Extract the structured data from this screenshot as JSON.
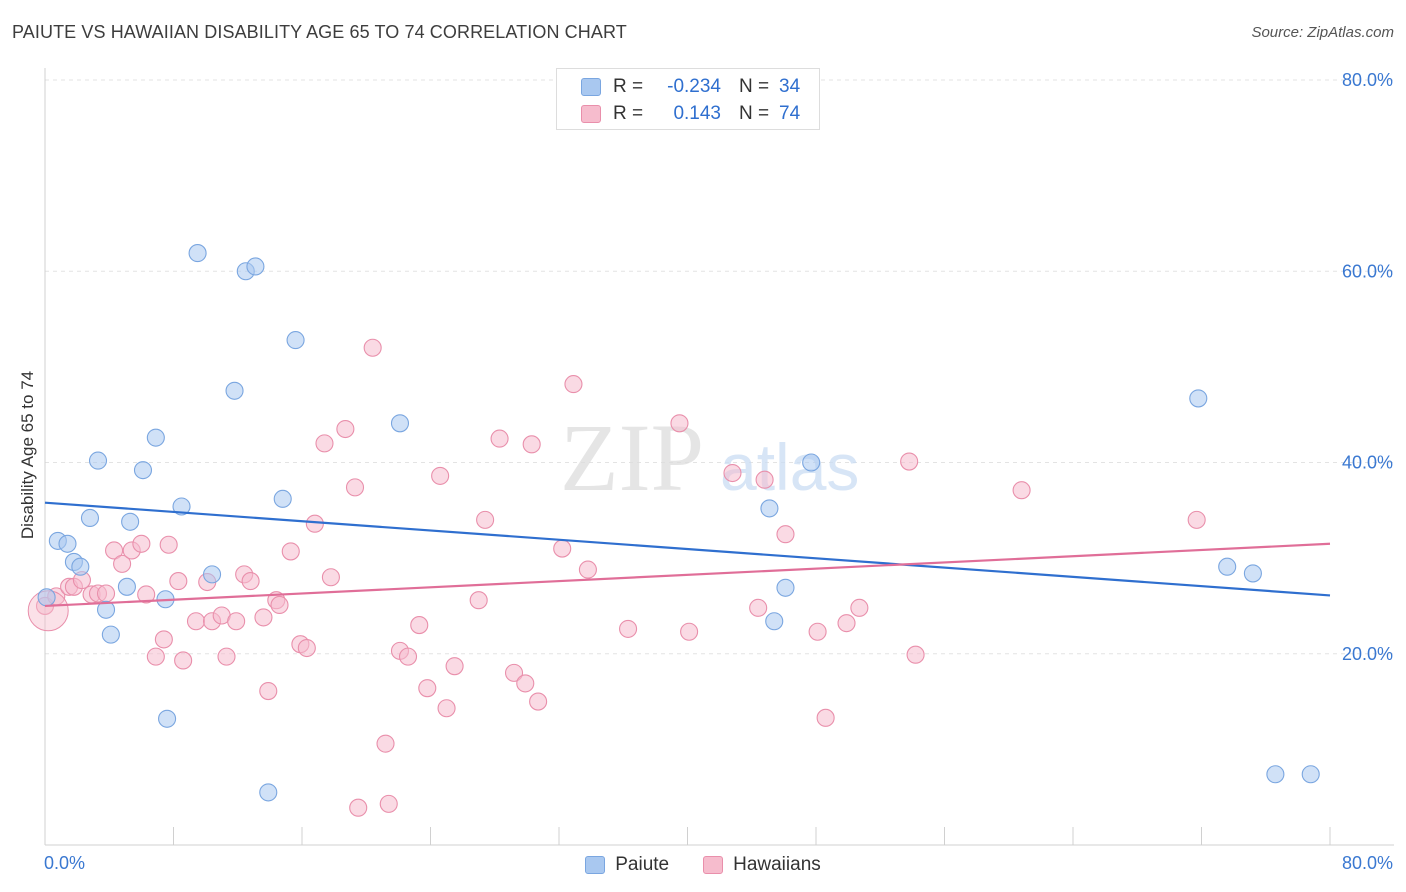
{
  "header": {
    "title": "PAIUTE VS HAWAIIAN DISABILITY AGE 65 TO 74 CORRELATION CHART",
    "source": "Source: ZipAtlas.com"
  },
  "legend_top": {
    "rows": [
      {
        "r_label": "R =",
        "r_value": "-0.234",
        "n_label": "N =",
        "n_value": "34"
      },
      {
        "r_label": "R =",
        "r_value": "0.143",
        "n_label": "N =",
        "n_value": "74"
      }
    ]
  },
  "legend_bottom": {
    "items": [
      {
        "label": "Paiute"
      },
      {
        "label": "Hawaiians"
      }
    ]
  },
  "colors": {
    "paiute_fill": "#a9c8f0",
    "paiute_stroke": "#7aa6e0",
    "paiute_line": "#2f6fcf",
    "hawaiian_fill": "#f6bccd",
    "hawaiian_stroke": "#e98fab",
    "hawaiian_line": "#e06e98",
    "axis_text": "#3a78d1",
    "grid": "#e3e3e3"
  },
  "chart_data": {
    "type": "scatter",
    "title": "PAIUTE VS HAWAIIAN DISABILITY AGE 65 TO 74 CORRELATION CHART",
    "xlabel": "",
    "ylabel": "Disability Age 65 to 74",
    "xlim": [
      0,
      80
    ],
    "ylim": [
      0,
      80
    ],
    "x_tick_labels": [
      {
        "value": 0,
        "label": "0.0%"
      },
      {
        "value": 80,
        "label": "80.0%"
      }
    ],
    "y_tick_labels": [
      {
        "value": 80,
        "label": "80.0%"
      },
      {
        "value": 60,
        "label": "60.0%"
      },
      {
        "value": 40,
        "label": "40.0%"
      },
      {
        "value": 20,
        "label": "20.0%"
      }
    ],
    "watermark": {
      "part1": "ZIP",
      "part2": "atlas"
    },
    "series": [
      {
        "name": "Paiute",
        "r": -0.234,
        "n": 34,
        "trend": {
          "x": [
            0,
            80
          ],
          "y": [
            35.8,
            26.1
          ]
        },
        "points": [
          [
            0.1,
            25.9
          ],
          [
            0.8,
            31.8
          ],
          [
            1.4,
            31.5
          ],
          [
            1.8,
            29.6
          ],
          [
            2.2,
            29.1
          ],
          [
            2.8,
            34.2
          ],
          [
            3.3,
            40.2
          ],
          [
            3.8,
            24.6
          ],
          [
            4.1,
            22.0
          ],
          [
            5.1,
            27.0
          ],
          [
            5.3,
            33.8
          ],
          [
            6.1,
            39.2
          ],
          [
            6.9,
            42.6
          ],
          [
            7.5,
            25.7
          ],
          [
            7.6,
            13.2
          ],
          [
            8.5,
            35.4
          ],
          [
            9.5,
            61.9
          ],
          [
            10.4,
            28.3
          ],
          [
            11.8,
            47.5
          ],
          [
            12.5,
            60.0
          ],
          [
            13.1,
            60.5
          ],
          [
            13.9,
            5.5
          ],
          [
            14.8,
            36.2
          ],
          [
            15.6,
            52.8
          ],
          [
            22.1,
            44.1
          ],
          [
            45.1,
            35.2
          ],
          [
            45.4,
            23.4
          ],
          [
            46.1,
            26.9
          ],
          [
            47.7,
            40.0
          ],
          [
            71.8,
            46.7
          ],
          [
            73.6,
            29.1
          ],
          [
            75.2,
            28.4
          ],
          [
            76.6,
            7.4
          ],
          [
            78.8,
            7.4
          ]
        ]
      },
      {
        "name": "Hawaiians",
        "r": 0.143,
        "n": 74,
        "trend": {
          "x": [
            0,
            80
          ],
          "y": [
            25.0,
            31.5
          ]
        },
        "points": [
          [
            0.0,
            25.0
          ],
          [
            0.7,
            26.0
          ],
          [
            1.5,
            27.0
          ],
          [
            1.8,
            27.0
          ],
          [
            2.3,
            27.7
          ],
          [
            2.9,
            26.2
          ],
          [
            3.3,
            26.3
          ],
          [
            3.8,
            26.3
          ],
          [
            4.3,
            30.8
          ],
          [
            4.8,
            29.4
          ],
          [
            5.4,
            30.8
          ],
          [
            6.0,
            31.5
          ],
          [
            6.3,
            26.2
          ],
          [
            6.9,
            19.7
          ],
          [
            7.4,
            21.5
          ],
          [
            7.7,
            31.4
          ],
          [
            8.3,
            27.6
          ],
          [
            8.6,
            19.3
          ],
          [
            9.4,
            23.4
          ],
          [
            10.1,
            27.5
          ],
          [
            10.4,
            23.4
          ],
          [
            11.0,
            24.0
          ],
          [
            11.3,
            19.7
          ],
          [
            11.9,
            23.4
          ],
          [
            12.4,
            28.3
          ],
          [
            12.8,
            27.6
          ],
          [
            13.6,
            23.8
          ],
          [
            13.9,
            16.1
          ],
          [
            14.4,
            25.6
          ],
          [
            14.6,
            25.1
          ],
          [
            15.3,
            30.7
          ],
          [
            15.9,
            21.0
          ],
          [
            16.3,
            20.6
          ],
          [
            16.8,
            33.6
          ],
          [
            17.4,
            42.0
          ],
          [
            17.8,
            28.0
          ],
          [
            18.7,
            43.5
          ],
          [
            19.3,
            37.4
          ],
          [
            19.5,
            3.9
          ],
          [
            20.4,
            52.0
          ],
          [
            21.2,
            10.6
          ],
          [
            21.4,
            4.3
          ],
          [
            22.1,
            20.3
          ],
          [
            22.6,
            19.7
          ],
          [
            23.3,
            23.0
          ],
          [
            23.8,
            16.4
          ],
          [
            24.6,
            38.6
          ],
          [
            25.0,
            14.3
          ],
          [
            25.5,
            18.7
          ],
          [
            27.0,
            25.6
          ],
          [
            27.4,
            34.0
          ],
          [
            28.3,
            42.5
          ],
          [
            29.2,
            18.0
          ],
          [
            29.9,
            16.9
          ],
          [
            30.3,
            41.9
          ],
          [
            30.7,
            15.0
          ],
          [
            32.2,
            31.0
          ],
          [
            32.9,
            48.2
          ],
          [
            33.8,
            28.8
          ],
          [
            36.3,
            22.6
          ],
          [
            39.5,
            44.1
          ],
          [
            40.1,
            22.3
          ],
          [
            42.8,
            38.9
          ],
          [
            44.4,
            24.8
          ],
          [
            44.8,
            38.2
          ],
          [
            46.1,
            32.5
          ],
          [
            48.1,
            22.3
          ],
          [
            48.6,
            13.3
          ],
          [
            49.9,
            23.2
          ],
          [
            50.7,
            24.8
          ],
          [
            53.8,
            40.1
          ],
          [
            54.2,
            19.9
          ],
          [
            60.8,
            37.1
          ],
          [
            71.7,
            34.0
          ]
        ]
      }
    ]
  }
}
